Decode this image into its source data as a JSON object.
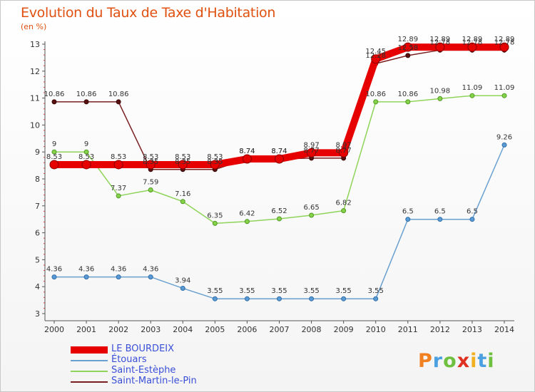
{
  "header": {
    "title": "Evolution du Taux de Taxe d'Habitation",
    "unit": "(en %)"
  },
  "brand": {
    "letters": [
      "P",
      "r",
      "o",
      "x",
      "i",
      "t",
      "i"
    ],
    "colors": [
      "#f08020",
      "#4aa0e0",
      "#70c040",
      "#e03020",
      "#f0b020",
      "#4aa0e0",
      "#70c040"
    ]
  },
  "chart_data": {
    "type": "line",
    "title": "Evolution du Taux de Taxe d'Habitation",
    "ylabel": "(en %)",
    "xlabel": "",
    "x": [
      "2000",
      "2001",
      "2002",
      "2003",
      "2004",
      "2005",
      "2006",
      "2007",
      "2008",
      "2009",
      "2010",
      "2011",
      "2012",
      "2013",
      "2014"
    ],
    "ylim": [
      3,
      13
    ],
    "yticks": [
      "3",
      "4",
      "5",
      "6",
      "7",
      "8",
      "9",
      "10",
      "11",
      "12",
      "13"
    ],
    "grid": false,
    "legend": "bottom-left",
    "series": [
      {
        "name": "LE BOURDEIX",
        "color": "#e60000",
        "values": [
          8.53,
          8.53,
          8.53,
          8.53,
          8.53,
          8.53,
          8.74,
          8.74,
          8.97,
          8.97,
          12.45,
          12.89,
          12.89,
          12.89,
          12.89
        ],
        "labels": [
          "8.53",
          "8.53",
          "8.53",
          "8.53",
          "8.53",
          "8.53",
          "8.74",
          "8.74",
          "8.97",
          "8.97",
          "12.45",
          "12.89",
          "12.89",
          "12.89",
          "12.89"
        ]
      },
      {
        "name": "Étouars",
        "color": "#5b9bd5",
        "values": [
          4.36,
          4.36,
          4.36,
          4.36,
          3.94,
          3.55,
          3.55,
          3.55,
          3.55,
          3.55,
          3.55,
          6.5,
          6.5,
          6.5,
          9.26
        ],
        "labels": [
          "4.36",
          "4.36",
          "4.36",
          "4.36",
          "3.94",
          "3.55",
          "3.55",
          "3.55",
          "3.55",
          "3.55",
          "3.55",
          "6.5",
          "6.5",
          "6.5",
          "9.26"
        ]
      },
      {
        "name": "Saint-Estèphe",
        "color": "#86d34b",
        "values": [
          9,
          9,
          7.37,
          7.59,
          7.16,
          6.35,
          6.42,
          6.52,
          6.65,
          6.82,
          10.86,
          10.86,
          10.98,
          11.09,
          11.09
        ],
        "labels": [
          "9",
          "9",
          "7.37",
          "7.59",
          "7.16",
          "6.35",
          "6.42",
          "6.52",
          "6.65",
          "6.82",
          "10.86",
          "10.86",
          "10.98",
          "11.09",
          "11.09"
        ]
      },
      {
        "name": "Saint-Martin-le-Pin",
        "color": "#7a1f1f",
        "values": [
          10.86,
          10.86,
          10.86,
          8.35,
          8.35,
          8.35,
          8.74,
          8.74,
          8.77,
          8.77,
          12.28,
          12.58,
          12.78,
          12.78,
          12.78
        ],
        "labels": [
          "10.86",
          "10.86",
          "10.86",
          "8.35",
          "8.35",
          "8.35",
          "8.74",
          "8.74",
          "8.77",
          "8.77",
          "12.28",
          "12.58",
          "12.78",
          "12.78",
          "12.78"
        ]
      }
    ]
  }
}
